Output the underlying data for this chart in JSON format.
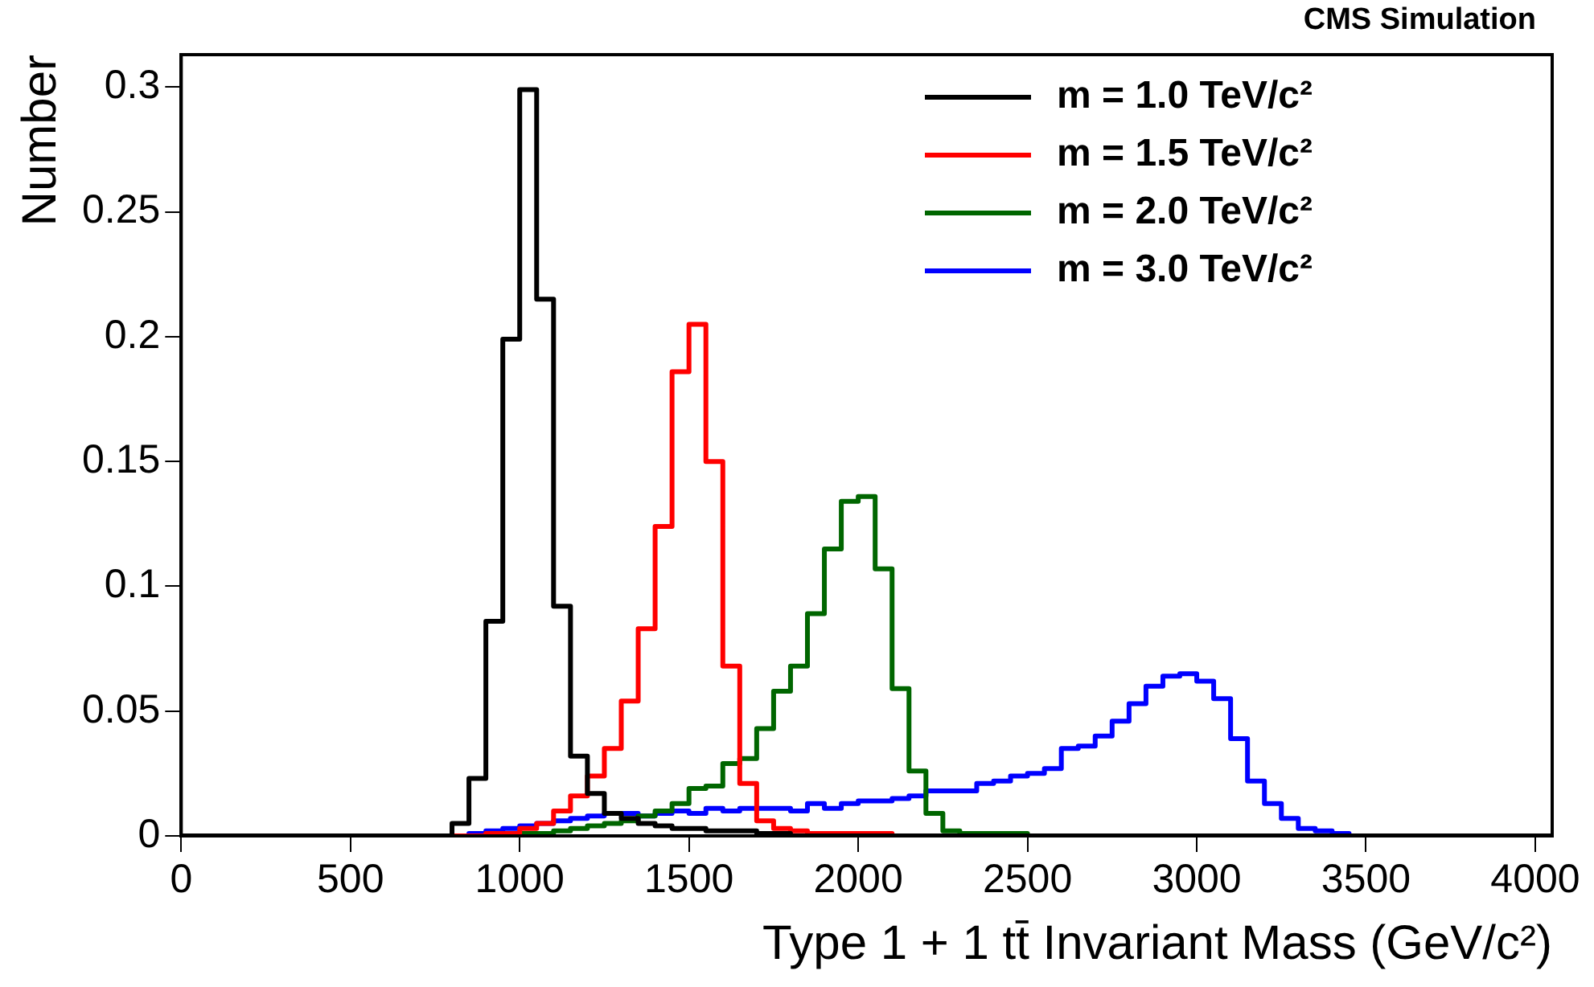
{
  "chart_data": {
    "type": "histogram",
    "xlabel": "Type 1 + 1 tt̄ Invariant Mass (GeV/c²)",
    "ylabel": "Number",
    "annotations": [
      "CMS Simulation"
    ],
    "bins": [
      0,
      50,
      100,
      150,
      200,
      250,
      300,
      350,
      400,
      450,
      500,
      550,
      600,
      650,
      700,
      750,
      800,
      850,
      900,
      950,
      1000,
      1050,
      1100,
      1150,
      1200,
      1250,
      1300,
      1350,
      1400,
      1450,
      1500,
      1550,
      1600,
      1650,
      1700,
      1750,
      1800,
      1850,
      1900,
      1950,
      2000,
      2050,
      2100,
      2150,
      2200,
      2250,
      2300,
      2350,
      2400,
      2450,
      2500,
      2550,
      2600,
      2650,
      2700,
      2750,
      2800,
      2850,
      2900,
      2950,
      3000,
      3050,
      3100,
      3150,
      3200,
      3250,
      3300,
      3350,
      3400,
      3450,
      3500,
      3550,
      3600,
      3650,
      3700,
      3750,
      3800,
      3850,
      3900,
      3950,
      4000,
      4050
    ],
    "series": [
      {
        "name": "m = 1.0 TeV/c²",
        "color": "#000000",
        "values": [
          0,
          0,
          0,
          0,
          0,
          0,
          0,
          0,
          0,
          0,
          0,
          0,
          0,
          0,
          0,
          0,
          0.005,
          0.023,
          0.086,
          0.199,
          0.299,
          0.215,
          0.092,
          0.032,
          0.017,
          0.009,
          0.007,
          0.005,
          0.004,
          0.003,
          0.003,
          0.002,
          0.002,
          0.002,
          0.001,
          0.001,
          0,
          0,
          0,
          0,
          0,
          0,
          0,
          0,
          0,
          0,
          0,
          0,
          0,
          0,
          0,
          0,
          0,
          0,
          0,
          0,
          0,
          0,
          0,
          0,
          0,
          0,
          0,
          0,
          0,
          0,
          0,
          0,
          0,
          0,
          0,
          0,
          0,
          0,
          0,
          0,
          0,
          0,
          0,
          0,
          0
        ]
      },
      {
        "name": "m = 1.5 TeV/c²",
        "color": "#ff0000",
        "values": [
          0,
          0,
          0,
          0,
          0,
          0,
          0,
          0,
          0,
          0,
          0,
          0,
          0,
          0,
          0,
          0,
          0,
          0,
          0.001,
          0.001,
          0.003,
          0.005,
          0.01,
          0.016,
          0.024,
          0.035,
          0.054,
          0.083,
          0.124,
          0.186,
          0.205,
          0.15,
          0.068,
          0.021,
          0.006,
          0.003,
          0.002,
          0.001,
          0.001,
          0.001,
          0.001,
          0.001,
          0,
          0,
          0,
          0,
          0,
          0,
          0,
          0,
          0,
          0,
          0,
          0,
          0,
          0,
          0,
          0,
          0,
          0,
          0,
          0,
          0,
          0,
          0,
          0,
          0,
          0,
          0,
          0,
          0,
          0,
          0,
          0,
          0,
          0,
          0,
          0,
          0,
          0,
          0
        ]
      },
      {
        "name": "m = 2.0 TeV/c²",
        "color": "#006600",
        "values": [
          0,
          0,
          0,
          0,
          0,
          0,
          0,
          0,
          0,
          0,
          0,
          0,
          0,
          0,
          0,
          0,
          0,
          0,
          0,
          0.001,
          0.001,
          0.001,
          0.002,
          0.003,
          0.004,
          0.005,
          0.006,
          0.008,
          0.01,
          0.013,
          0.019,
          0.02,
          0.029,
          0.031,
          0.043,
          0.058,
          0.068,
          0.089,
          0.115,
          0.134,
          0.136,
          0.107,
          0.059,
          0.026,
          0.009,
          0.002,
          0.001,
          0.001,
          0.001,
          0.001,
          0,
          0,
          0,
          0,
          0,
          0,
          0,
          0,
          0,
          0,
          0,
          0,
          0,
          0,
          0,
          0,
          0,
          0,
          0,
          0,
          0,
          0,
          0,
          0,
          0,
          0,
          0,
          0,
          0,
          0,
          0
        ]
      },
      {
        "name": "m = 3.0 TeV/c²",
        "color": "#0000ff",
        "values": [
          0,
          0,
          0,
          0,
          0,
          0,
          0,
          0,
          0,
          0,
          0,
          0,
          0,
          0,
          0,
          0,
          0,
          0.001,
          0.002,
          0.003,
          0.004,
          0.005,
          0.006,
          0.007,
          0.008,
          0.009,
          0.009,
          0.008,
          0.009,
          0.01,
          0.009,
          0.011,
          0.01,
          0.011,
          0.011,
          0.011,
          0.01,
          0.013,
          0.011,
          0.013,
          0.014,
          0.014,
          0.015,
          0.016,
          0.018,
          0.018,
          0.018,
          0.021,
          0.022,
          0.024,
          0.025,
          0.027,
          0.035,
          0.036,
          0.04,
          0.046,
          0.053,
          0.06,
          0.064,
          0.065,
          0.062,
          0.055,
          0.039,
          0.022,
          0.013,
          0.007,
          0.003,
          0.002,
          0.001,
          0,
          0,
          0,
          0,
          0,
          0,
          0,
          0,
          0,
          0,
          0,
          0
        ]
      }
    ],
    "xlim": [
      0,
      4050
    ],
    "xticks": [
      0,
      500,
      1000,
      1500,
      2000,
      2500,
      3000,
      3500,
      4000
    ],
    "ylim": [
      0,
      0.313
    ],
    "yticks": [
      0,
      0.05,
      0.1,
      0.15,
      0.2,
      0.25,
      0.3
    ],
    "grid": false,
    "legend": "top right"
  }
}
